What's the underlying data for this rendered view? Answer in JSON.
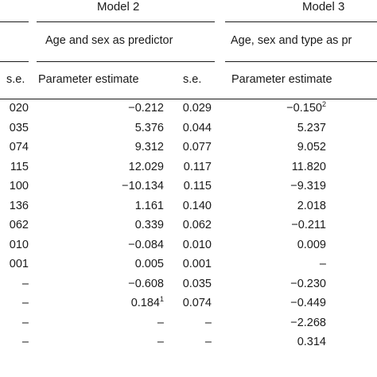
{
  "header": {
    "model2_title": "Model 2",
    "model3_title": "Model 3",
    "model2_subtitle": "Age and sex as predictor",
    "model3_subtitle": "Age, sex and type as pr",
    "col_se_left": "s.e.",
    "col_param_m2": "Parameter estimate",
    "col_se_m2": "s.e.",
    "col_param_m3": "Parameter estimate"
  },
  "rows": [
    {
      "se_left": "020",
      "param_m2": "−0.212",
      "param_m2_sup": "",
      "se_m2": "0.029",
      "param_m3": "−0.150",
      "param_m3_sup": "2"
    },
    {
      "se_left": "035",
      "param_m2": "5.376",
      "param_m2_sup": "",
      "se_m2": "0.044",
      "param_m3": "5.237",
      "param_m3_sup": ""
    },
    {
      "se_left": "074",
      "param_m2": "9.312",
      "param_m2_sup": "",
      "se_m2": "0.077",
      "param_m3": "9.052",
      "param_m3_sup": ""
    },
    {
      "se_left": "115",
      "param_m2": "12.029",
      "param_m2_sup": "",
      "se_m2": "0.117",
      "param_m3": "11.820",
      "param_m3_sup": ""
    },
    {
      "se_left": "100",
      "param_m2": "−10.134",
      "param_m2_sup": "",
      "se_m2": "0.115",
      "param_m3": "−9.319",
      "param_m3_sup": ""
    },
    {
      "se_left": "136",
      "param_m2": "1.161",
      "param_m2_sup": "",
      "se_m2": "0.140",
      "param_m3": "2.018",
      "param_m3_sup": ""
    },
    {
      "se_left": "062",
      "param_m2": "0.339",
      "param_m2_sup": "",
      "se_m2": "0.062",
      "param_m3": "−0.211",
      "param_m3_sup": ""
    },
    {
      "se_left": "010",
      "param_m2": "−0.084",
      "param_m2_sup": "",
      "se_m2": "0.010",
      "param_m3": "0.009",
      "param_m3_sup": ""
    },
    {
      "se_left": "001",
      "param_m2": "0.005",
      "param_m2_sup": "",
      "se_m2": "0.001",
      "param_m3": "–",
      "param_m3_sup": ""
    },
    {
      "se_left": "–",
      "param_m2": "−0.608",
      "param_m2_sup": "",
      "se_m2": "0.035",
      "param_m3": "−0.230",
      "param_m3_sup": ""
    },
    {
      "se_left": "–",
      "param_m2": "0.184",
      "param_m2_sup": "1",
      "se_m2": "0.074",
      "param_m3": "−0.449",
      "param_m3_sup": ""
    },
    {
      "se_left": "–",
      "param_m2": "–",
      "param_m2_sup": "",
      "se_m2": "–",
      "param_m3": "−2.268",
      "param_m3_sup": ""
    },
    {
      "se_left": "–",
      "param_m2": "–",
      "param_m2_sup": "",
      "se_m2": "–",
      "param_m3": "0.314",
      "param_m3_sup": ""
    }
  ]
}
